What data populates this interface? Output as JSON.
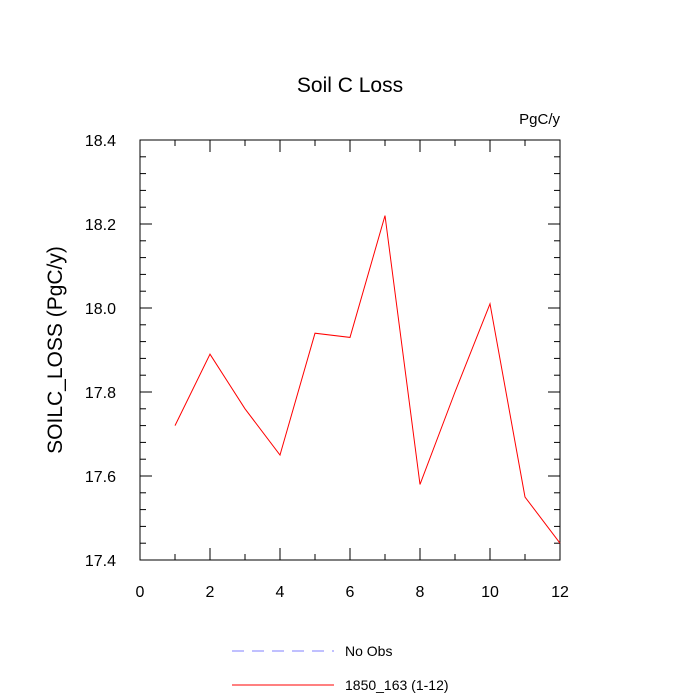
{
  "chart_data": {
    "type": "line",
    "title": "Soil C Loss",
    "units_label": "PgC/y",
    "xlabel": "",
    "ylabel": "SOILC_LOSS  (PgC/y)",
    "xlim": [
      0,
      12
    ],
    "ylim": [
      17.4,
      18.4
    ],
    "x_ticks": [
      0,
      2,
      4,
      6,
      8,
      10,
      12
    ],
    "x_tick_labels": [
      "0",
      "2",
      "4",
      "6",
      "8",
      "10",
      "12"
    ],
    "y_ticks": [
      17.4,
      17.6,
      17.8,
      18.0,
      18.2,
      18.4
    ],
    "y_tick_labels": [
      "17.4",
      "17.6",
      "17.8",
      "18.0",
      "18.2",
      "18.4"
    ],
    "grid": false,
    "legend_position": "bottom-center",
    "series": [
      {
        "name": "1850_163 (1-12)",
        "color": "#ff0000",
        "dash": "solid",
        "x": [
          1,
          2,
          3,
          4,
          5,
          6,
          7,
          8,
          9,
          10,
          11,
          12
        ],
        "values": [
          17.72,
          17.89,
          17.76,
          17.65,
          17.94,
          17.93,
          18.22,
          17.58,
          17.8,
          18.01,
          17.55,
          17.44
        ]
      }
    ],
    "legend": [
      {
        "label": "No Obs",
        "color": "#8080ff",
        "dash": "dashed"
      },
      {
        "label": "1850_163 (1-12)",
        "color": "#ff0000",
        "dash": "solid"
      }
    ]
  }
}
